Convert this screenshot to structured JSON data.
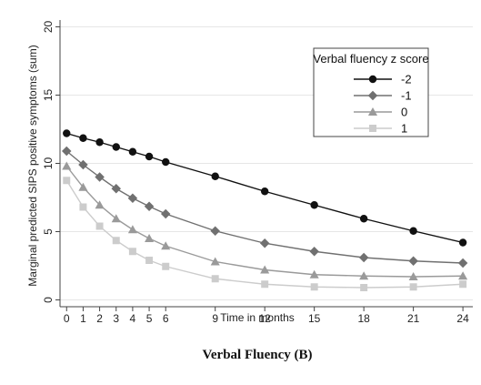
{
  "chart_data": {
    "type": "line",
    "title": "",
    "caption": "Verbal Fluency (B)",
    "xlabel": "Time in months",
    "ylabel": "Marginal predicted SIPS positive symptoms (sum)",
    "x": [
      0,
      1,
      2,
      3,
      4,
      5,
      6,
      9,
      12,
      15,
      18,
      21,
      24
    ],
    "x_ticks": [
      0,
      1,
      2,
      3,
      4,
      5,
      6,
      9,
      12,
      15,
      18,
      21,
      24
    ],
    "y_ticks": [
      0,
      5,
      10,
      15,
      20
    ],
    "xlim": [
      -0.4,
      24.6
    ],
    "ylim": [
      -0.5,
      20.5
    ],
    "grid": "horizontal",
    "legend": {
      "title": "Verbal fluency z score",
      "placement": "top-right"
    },
    "series": [
      {
        "name": "-2",
        "color": "#111111",
        "marker": "circle",
        "values": [
          12.2,
          11.85,
          11.55,
          11.2,
          10.85,
          10.5,
          10.1,
          9.05,
          7.95,
          6.95,
          5.95,
          5.05,
          4.2
        ]
      },
      {
        "name": "-1",
        "color": "#707070",
        "marker": "diamond",
        "values": [
          10.9,
          9.9,
          9.0,
          8.15,
          7.45,
          6.85,
          6.3,
          5.05,
          4.15,
          3.55,
          3.1,
          2.85,
          2.7
        ]
      },
      {
        "name": "0",
        "color": "#9a9a9a",
        "marker": "triangle",
        "values": [
          9.8,
          8.25,
          6.95,
          5.95,
          5.15,
          4.5,
          3.95,
          2.8,
          2.2,
          1.85,
          1.75,
          1.7,
          1.75
        ]
      },
      {
        "name": "1",
        "color": "#cccccc",
        "marker": "square",
        "values": [
          8.75,
          6.8,
          5.4,
          4.35,
          3.55,
          2.9,
          2.45,
          1.55,
          1.15,
          0.95,
          0.9,
          0.95,
          1.15
        ]
      }
    ]
  }
}
